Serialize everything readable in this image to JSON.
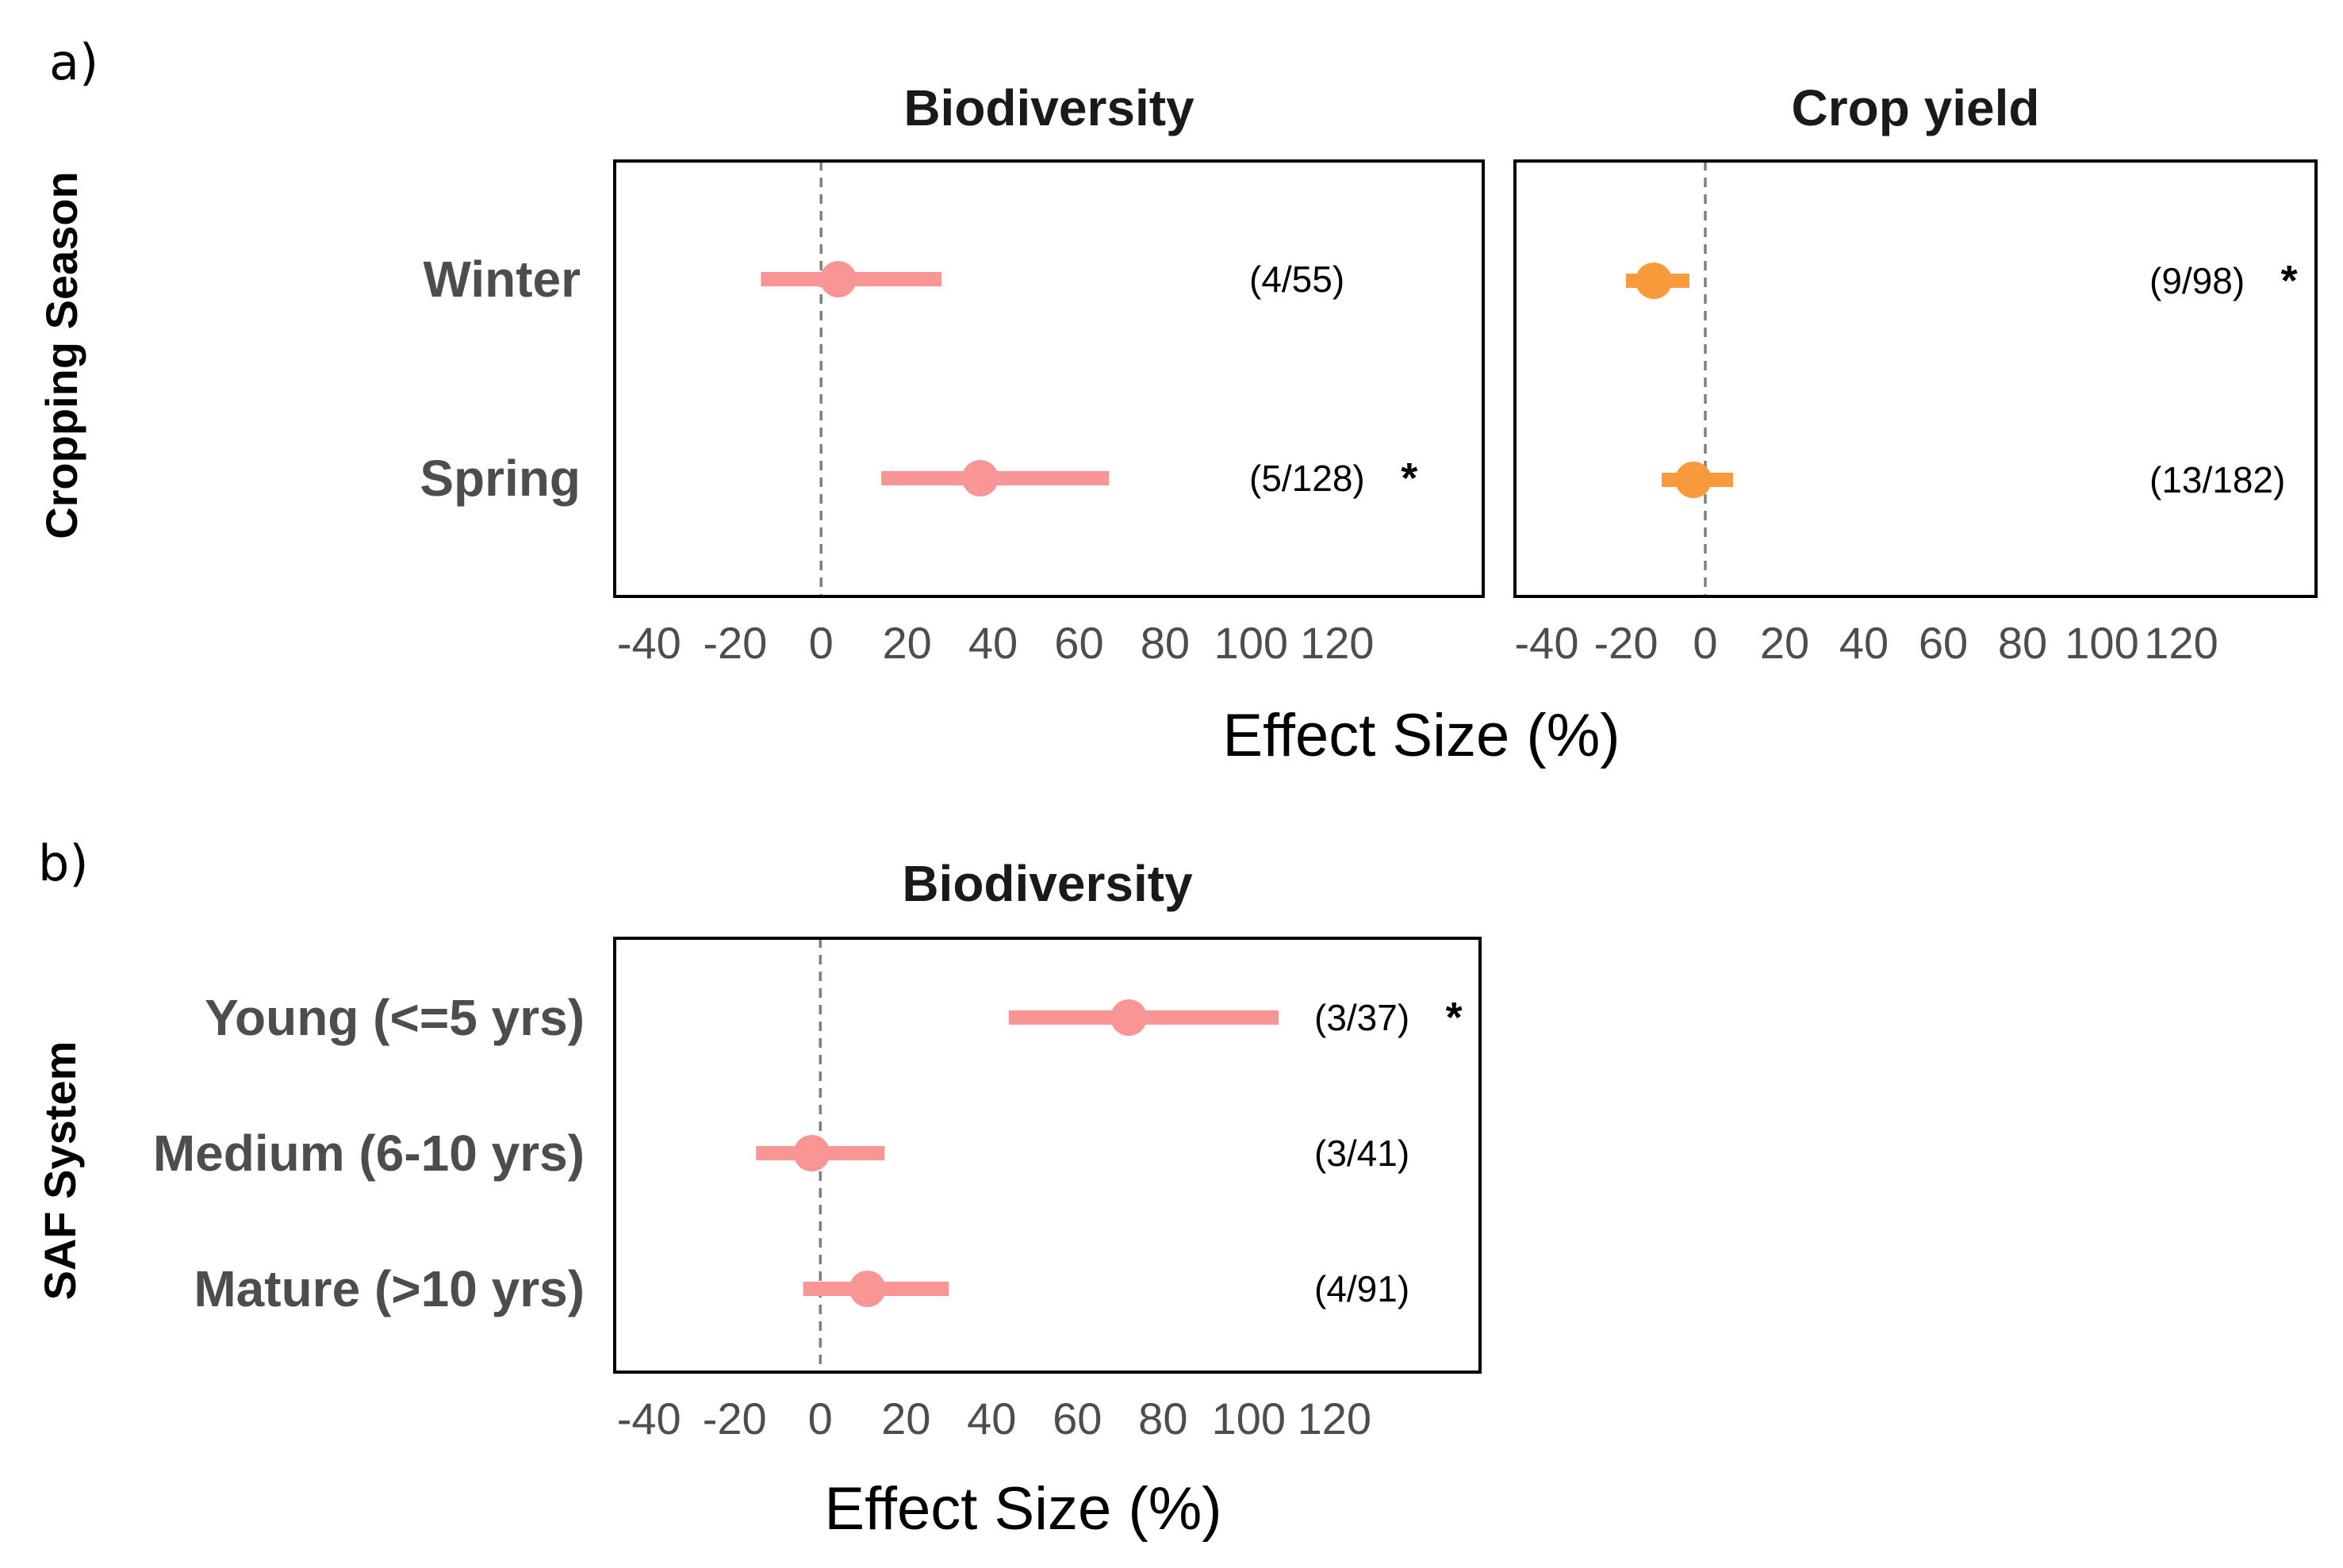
{
  "panels": [
    {
      "letter": "a)",
      "y_title": "Cropping Season",
      "x_title": "Effect Size (%)",
      "ticks": [
        "-40",
        "-20",
        "0",
        "20",
        "40",
        "60",
        "80",
        "100",
        "120"
      ]
    },
    {
      "letter": "b)",
      "y_title": "SAF System",
      "x_title": "Effect Size (%)",
      "ticks": [
        "-40",
        "-20",
        "0",
        "20",
        "40",
        "60",
        "80",
        "100",
        "120"
      ]
    }
  ],
  "chart_data": [
    {
      "type": "forest",
      "panel": "a)",
      "title": "Biodiversity",
      "color": "#f99595",
      "xlabel": "Effect Size (%)",
      "ylabel": "Cropping Season",
      "xlim": [
        -48,
        154
      ],
      "xticks": [
        -40,
        -20,
        0,
        20,
        40,
        60,
        80,
        100,
        120
      ],
      "reference_line": 0,
      "categories": [
        "Winter",
        "Spring"
      ],
      "estimates": [
        4,
        37
      ],
      "ci_low": [
        -14,
        14
      ],
      "ci_high": [
        28,
        67
      ],
      "n_labels": [
        "(4/55)",
        "(5/128)"
      ],
      "significant": [
        false,
        true
      ],
      "star": "*"
    },
    {
      "type": "forest",
      "panel": "a)",
      "title": "Crop yield",
      "color": "#f99a3a",
      "xlabel": "Effect Size (%)",
      "ylabel": "Cropping Season",
      "xlim": [
        -48,
        154
      ],
      "xticks": [
        -40,
        -20,
        0,
        20,
        40,
        60,
        80,
        100,
        120
      ],
      "reference_line": 0,
      "categories": [
        "Winter",
        "Spring"
      ],
      "estimates": [
        -13,
        -3
      ],
      "ci_low": [
        -20,
        -11
      ],
      "ci_high": [
        -4,
        7
      ],
      "n_labels": [
        "(9/98)",
        "(13/182)"
      ],
      "significant": [
        true,
        false
      ],
      "star": "*"
    },
    {
      "type": "forest",
      "panel": "b)",
      "title": "Biodiversity",
      "color": "#f99595",
      "xlabel": "Effect Size (%)",
      "ylabel": "SAF System",
      "xlim": [
        -48,
        154
      ],
      "xticks": [
        -40,
        -20,
        0,
        20,
        40,
        60,
        80,
        100,
        120
      ],
      "reference_line": 0,
      "categories": [
        "Young (<=5 yrs)",
        "Medium (6-10 yrs)",
        "Mature (>10 yrs)"
      ],
      "estimates": [
        72,
        -2,
        11
      ],
      "ci_low": [
        44,
        -15,
        -4
      ],
      "ci_high": [
        107,
        15,
        30
      ],
      "n_labels": [
        "(3/37)",
        "(3/41)",
        "(4/91)"
      ],
      "significant": [
        true,
        false,
        false
      ],
      "star": "*"
    }
  ]
}
